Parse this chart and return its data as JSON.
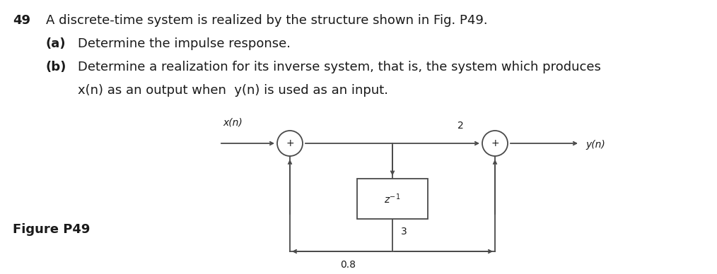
{
  "title_number": "49",
  "line1": "A discrete-time system is realized by the structure shown in Fig. P49.",
  "line2a": "(a)",
  "line2b": "Determine the impulse response.",
  "line3a": "(b)",
  "line3b": "Determine a realization for its inverse system, that is, the system which produces",
  "line3c": "x(n) as an output when  y(n) is used as an input.",
  "figure_label": "Figure P49",
  "input_label": "x(n)",
  "output_label": "y(n)",
  "delay_label": "z^{-1}",
  "gain_top": "2",
  "gain_bottom": "0.8",
  "gain_feedback": "3",
  "bg_color": "#ffffff",
  "text_color": "#1a1a1a",
  "line_color": "#4a4a4a",
  "fs_main": 13,
  "fs_diagram": 10,
  "lw": 1.3
}
